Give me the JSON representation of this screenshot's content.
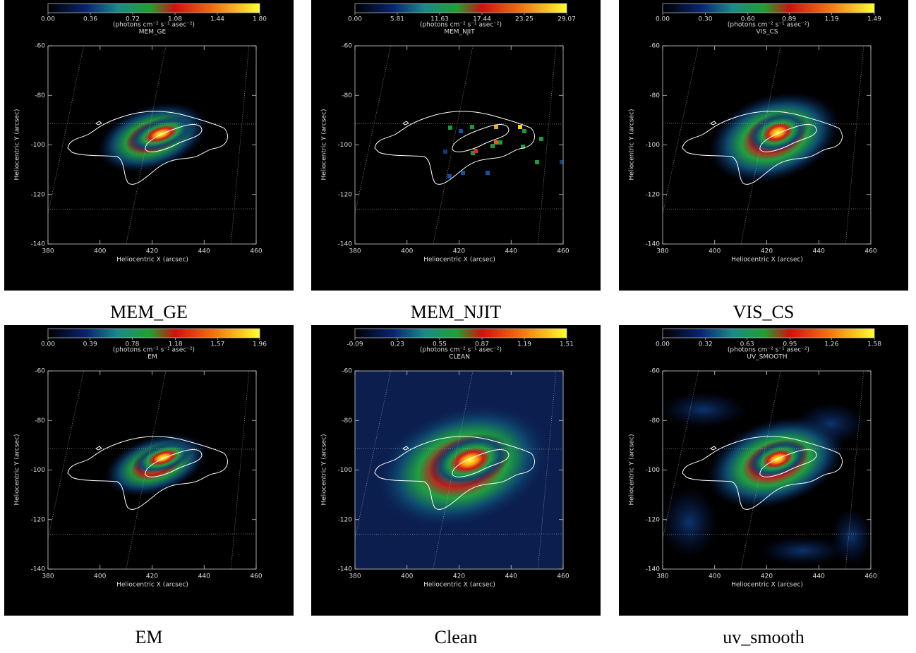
{
  "chart_data": [
    {
      "type": "image",
      "title": "MEM_GE",
      "caption": "MEM_GE",
      "xlabel": "Heliocentric X (arcsec)",
      "ylabel": "Heliocentric Y (arcsec)",
      "xlim": [
        380,
        460
      ],
      "ylim": [
        -140,
        -60
      ],
      "xticks": [
        380,
        400,
        420,
        440,
        460
      ],
      "yticks": [
        -140,
        -120,
        -100,
        -80,
        -60
      ],
      "colorbar": {
        "label": "(photons cm⁻² s⁻¹ asec⁻²)",
        "lim": [
          0,
          1.8
        ],
        "ticks": [
          {
            "value": 0,
            "label": "0.00"
          },
          0.36,
          0.72,
          1.08,
          1.44,
          {
            "value": 1.8,
            "label": "1.80"
          }
        ]
      }
    },
    {
      "type": "image",
      "title": "MEM_NJIT",
      "caption": "MEM_NJIT",
      "xlabel": "Heliocentric X (arcsec)",
      "ylabel": "Heliocentric Y (arcsec)",
      "xlim": [
        380,
        460
      ],
      "ylim": [
        -140,
        -60
      ],
      "xticks": [
        380,
        400,
        420,
        440,
        460
      ],
      "yticks": [
        -140,
        -120,
        -100,
        -80,
        -60
      ],
      "colorbar": {
        "label": "(photons cm⁻² s⁻¹ asec⁻²)",
        "lim": [
          0,
          29.07
        ],
        "ticks": [
          {
            "value": 0,
            "label": "0.00"
          },
          5.81,
          11.63,
          17.44,
          23.25,
          29.07
        ]
      }
    },
    {
      "type": "image",
      "title": "VIS_CS",
      "caption": "VIS_CS",
      "xlabel": "Heliocentric X (arcsec)",
      "ylabel": "Heliocentric Y (arcsec)",
      "xlim": [
        380,
        460
      ],
      "ylim": [
        -140,
        -60
      ],
      "xticks": [
        380,
        400,
        420,
        440,
        460
      ],
      "yticks": [
        -140,
        -120,
        -100,
        -80,
        -60
      ],
      "colorbar": {
        "label": "(photons cm⁻² s⁻¹ asec⁻²)",
        "lim": [
          0,
          1.49
        ],
        "ticks": [
          {
            "value": 0,
            "label": "0.00"
          },
          {
            "value": 0.3,
            "label": "0.30"
          },
          {
            "value": 0.6,
            "label": "0.60"
          },
          0.89,
          1.19,
          1.49
        ]
      }
    },
    {
      "type": "image",
      "title": "EM",
      "caption": "EM",
      "xlabel": "Heliocentric X (arcsec)",
      "ylabel": "Heliocentric Y (arcsec)",
      "xlim": [
        380,
        460
      ],
      "ylim": [
        -140,
        -60
      ],
      "xticks": [
        380,
        400,
        420,
        440,
        460
      ],
      "yticks": [
        -140,
        -120,
        -100,
        -80,
        -60
      ],
      "colorbar": {
        "label": "(photons cm⁻² s⁻¹ asec⁻²)",
        "lim": [
          0,
          1.96
        ],
        "ticks": [
          {
            "value": 0,
            "label": "0.00"
          },
          0.39,
          0.78,
          1.18,
          1.57,
          1.96
        ]
      }
    },
    {
      "type": "image",
      "title": "CLEAN",
      "caption": "Clean",
      "xlabel": "Heliocentric X (arcsec)",
      "ylabel": "Heliocentric Y (arcsec)",
      "xlim": [
        380,
        460
      ],
      "ylim": [
        -140,
        -60
      ],
      "xticks": [
        380,
        400,
        420,
        440,
        460
      ],
      "yticks": [
        -140,
        -120,
        -100,
        -80,
        -60
      ],
      "colorbar": {
        "label": "(photons cm⁻² s⁻¹ asec⁻²)",
        "lim": [
          -0.09,
          1.51
        ],
        "ticks": [
          -0.09,
          0.23,
          0.55,
          0.87,
          1.19,
          1.51
        ]
      }
    },
    {
      "type": "image",
      "title": "UV_SMOOTH",
      "caption": "uv_smooth",
      "xlabel": "Heliocentric X (arcsec)",
      "ylabel": "Heliocentric Y (arcsec)",
      "xlim": [
        380,
        460
      ],
      "ylim": [
        -140,
        -60
      ],
      "xticks": [
        380,
        400,
        420,
        440,
        460
      ],
      "yticks": [
        -140,
        -120,
        -100,
        -80,
        -60
      ],
      "colorbar": {
        "label": "(photons cm⁻² s⁻¹ asec⁻²)",
        "lim": [
          0,
          1.58
        ],
        "ticks": [
          {
            "value": 0,
            "label": "0.00"
          },
          0.32,
          0.63,
          0.95,
          1.26,
          1.58
        ]
      }
    }
  ]
}
